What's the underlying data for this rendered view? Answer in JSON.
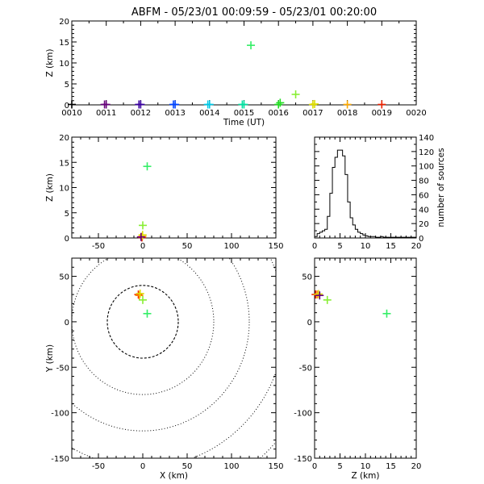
{
  "title": "ABFM - 05/23/01 00:09:59 - 05/23/01 00:20:00",
  "chart_data": [
    {
      "id": "time_height",
      "type": "scatter",
      "xlabel": "Time (UT)",
      "ylabel": "Z (km)",
      "xlim": [
        "0010",
        "0020"
      ],
      "ylim": [
        0,
        20
      ],
      "x_tick_labels": [
        "0010",
        "0011",
        "0012",
        "0013",
        "0014",
        "0015",
        "0016",
        "0017",
        "0018",
        "0019",
        "0020"
      ],
      "y_tick_labels": [
        "0",
        "5",
        "10",
        "15",
        "20"
      ],
      "x_ticks_minutes": [
        0,
        1,
        2,
        3,
        4,
        5,
        6,
        7,
        8,
        9,
        10
      ],
      "y_ticks": [
        0,
        5,
        10,
        15,
        20
      ],
      "points": [
        {
          "t": 0.0,
          "z": 0.1,
          "color": "#000000"
        },
        {
          "t": 0.95,
          "z": 0.1,
          "color": "#66007a"
        },
        {
          "t": 1.0,
          "z": 0.1,
          "color": "#66007a"
        },
        {
          "t": 1.95,
          "z": 0.1,
          "color": "#3a00a0"
        },
        {
          "t": 2.0,
          "z": 0.1,
          "color": "#3a00a0"
        },
        {
          "t": 2.95,
          "z": 0.1,
          "color": "#0044ff"
        },
        {
          "t": 3.0,
          "z": 0.1,
          "color": "#0044ff"
        },
        {
          "t": 3.95,
          "z": 0.1,
          "color": "#00c8e6"
        },
        {
          "t": 4.0,
          "z": 0.1,
          "color": "#00c8e6"
        },
        {
          "t": 4.95,
          "z": 0.1,
          "color": "#00e0a0"
        },
        {
          "t": 5.0,
          "z": 0.1,
          "color": "#00e0a0"
        },
        {
          "t": 5.2,
          "z": 14.2,
          "color": "#33ee66"
        },
        {
          "t": 6.0,
          "z": 0.1,
          "color": "#22dd22"
        },
        {
          "t": 6.05,
          "z": 0.5,
          "color": "#22dd22"
        },
        {
          "t": 6.5,
          "z": 2.5,
          "color": "#88ee33"
        },
        {
          "t": 7.0,
          "z": 0.1,
          "color": "#dddd00"
        },
        {
          "t": 7.05,
          "z": 0.2,
          "color": "#dddd00"
        },
        {
          "t": 8.0,
          "z": 0.1,
          "color": "#ffaa00"
        },
        {
          "t": 9.0,
          "z": 0.1,
          "color": "#ee2200"
        }
      ]
    },
    {
      "id": "x_height",
      "type": "scatter",
      "xlabel": "",
      "ylabel": "Z (km)",
      "xlim": [
        -80,
        150
      ],
      "ylim": [
        0,
        20
      ],
      "x_ticks": [
        -50,
        0,
        50,
        100,
        150
      ],
      "y_ticks": [
        0,
        5,
        10,
        15,
        20
      ],
      "points": [
        {
          "x": -1.0,
          "z": 0.1,
          "color": "#ee2200"
        },
        {
          "x": -0.5,
          "z": 0.3,
          "color": "#ff8800"
        },
        {
          "x": -0.2,
          "z": 0.6,
          "color": "#dddd00"
        },
        {
          "x": -2.0,
          "z": 0.2,
          "color": "#66007a"
        },
        {
          "x": 0.0,
          "z": 2.5,
          "color": "#88ee33"
        },
        {
          "x": 5.0,
          "z": 14.2,
          "color": "#33ee66"
        }
      ]
    },
    {
      "id": "height_histogram",
      "type": "area",
      "xlabel": "",
      "ylabel": "number of sources",
      "xlim": [
        0,
        20
      ],
      "ylim": [
        0,
        140
      ],
      "x_ticks": [
        0,
        5,
        10,
        15,
        20
      ],
      "y_ticks": [
        0,
        20,
        40,
        60,
        80,
        100,
        120,
        140
      ],
      "bin_width": 0.5,
      "bin_start": 0,
      "counts": [
        2,
        6,
        8,
        10,
        12,
        30,
        62,
        98,
        112,
        122,
        122,
        114,
        88,
        50,
        28,
        18,
        12,
        8,
        6,
        4,
        3,
        2,
        2,
        2,
        1,
        1,
        2,
        1,
        1,
        1,
        1,
        1,
        1,
        1,
        1,
        1,
        1,
        1,
        1,
        1
      ]
    },
    {
      "id": "plan_view",
      "type": "scatter",
      "xlabel": "X (km)",
      "ylabel": "Y (km)",
      "xlim": [
        -80,
        150
      ],
      "ylim": [
        -150,
        70
      ],
      "x_ticks": [
        -50,
        0,
        50,
        100,
        150
      ],
      "y_ticks": [
        -150,
        -100,
        -50,
        0,
        50
      ],
      "range_rings_km": [
        40,
        80,
        120,
        160,
        200
      ],
      "points": [
        {
          "x": -5.0,
          "y": 30.0,
          "color": "#ee2200"
        },
        {
          "x": -4.0,
          "y": 29.0,
          "color": "#ff8800"
        },
        {
          "x": -3.0,
          "y": 31.0,
          "color": "#dddd00"
        },
        {
          "x": 0.0,
          "y": 24.0,
          "color": "#88ee33"
        },
        {
          "x": 5.0,
          "y": 9.0,
          "color": "#33ee66"
        }
      ]
    },
    {
      "id": "height_y",
      "type": "scatter",
      "xlabel": "Z (km)",
      "ylabel": "",
      "xlim": [
        0,
        20
      ],
      "ylim": [
        -150,
        70
      ],
      "x_ticks": [
        0,
        5,
        10,
        15,
        20
      ],
      "y_ticks": [
        -150,
        -100,
        -50,
        0,
        50
      ],
      "points": [
        {
          "z": 0.2,
          "y": 30.0,
          "color": "#ee2200"
        },
        {
          "z": 0.5,
          "y": 30.0,
          "color": "#ff8800"
        },
        {
          "z": 0.8,
          "y": 30.5,
          "color": "#dddd00"
        },
        {
          "z": 1.0,
          "y": 29.0,
          "color": "#66007a"
        },
        {
          "z": 2.5,
          "y": 24.0,
          "color": "#88ee33"
        },
        {
          "z": 14.2,
          "y": 9.0,
          "color": "#33ee66"
        }
      ]
    }
  ]
}
